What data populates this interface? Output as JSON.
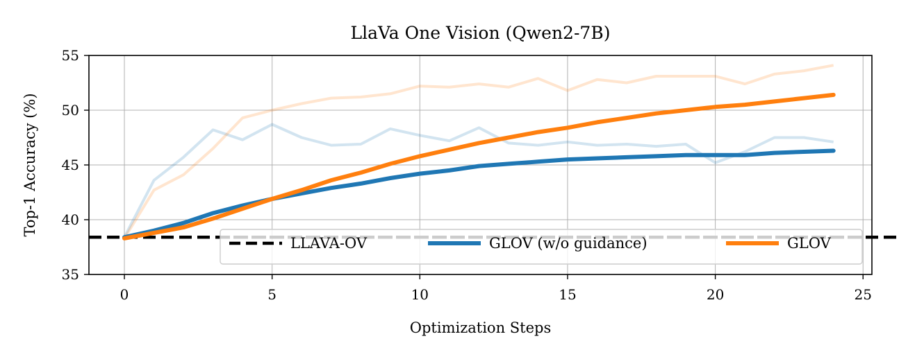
{
  "chart_data": {
    "type": "line",
    "title": "LlaVa One Vision (Qwen2-7B)",
    "xlabel": "Optimization Steps",
    "ylabel": "Top-1 Accuracy (%)",
    "xlim": [
      -1.2,
      25.3
    ],
    "ylim": [
      35,
      55
    ],
    "xticks": [
      0,
      5,
      10,
      15,
      20,
      25
    ],
    "yticks": [
      35,
      40,
      45,
      50,
      55
    ],
    "grid": true,
    "legend_position": "lower-right",
    "x": [
      0,
      1,
      2,
      3,
      4,
      5,
      6,
      7,
      8,
      9,
      10,
      11,
      12,
      13,
      14,
      15,
      16,
      17,
      18,
      19,
      20,
      21,
      22,
      23,
      24
    ],
    "baseline": {
      "name": "LLAVA-OV",
      "value": 38.4,
      "color": "#000000",
      "shadow_color": "#cccccc"
    },
    "series": [
      {
        "name": "GLOV (w/o guidance)",
        "color": "#1f77b4",
        "values": [
          38.4,
          39.0,
          39.7,
          40.6,
          41.3,
          41.9,
          42.4,
          42.9,
          43.3,
          43.8,
          44.2,
          44.5,
          44.9,
          45.1,
          45.3,
          45.5,
          45.6,
          45.7,
          45.8,
          45.9,
          45.9,
          45.9,
          46.1,
          46.2,
          46.3
        ],
        "raw_values": [
          38.4,
          43.6,
          45.7,
          48.2,
          47.3,
          48.7,
          47.5,
          46.8,
          46.9,
          48.3,
          47.7,
          47.2,
          48.4,
          47.0,
          46.8,
          47.1,
          46.8,
          46.9,
          46.7,
          46.9,
          45.2,
          46.2,
          47.5,
          47.5,
          47.1
        ]
      },
      {
        "name": "GLOV",
        "color": "#ff7f0e",
        "values": [
          38.3,
          38.8,
          39.3,
          40.1,
          41.0,
          41.9,
          42.7,
          43.6,
          44.3,
          45.1,
          45.8,
          46.4,
          47.0,
          47.5,
          48.0,
          48.4,
          48.9,
          49.3,
          49.7,
          50.0,
          50.3,
          50.5,
          50.8,
          51.1,
          51.4
        ],
        "raw_values": [
          38.3,
          42.7,
          44.1,
          46.5,
          49.3,
          50.0,
          50.6,
          51.1,
          51.2,
          51.5,
          52.2,
          52.1,
          52.4,
          52.1,
          52.9,
          51.8,
          52.8,
          52.5,
          53.1,
          53.1,
          53.1,
          52.4,
          53.3,
          53.6,
          54.1
        ]
      }
    ]
  }
}
